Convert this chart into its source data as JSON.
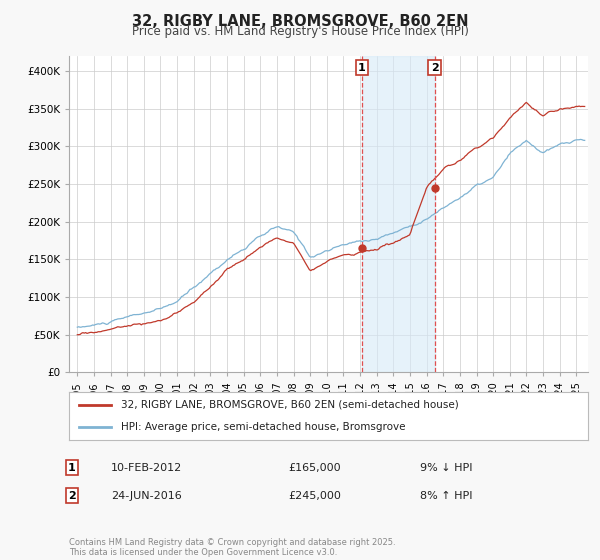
{
  "title": "32, RIGBY LANE, BROMSGROVE, B60 2EN",
  "subtitle": "Price paid vs. HM Land Registry's House Price Index (HPI)",
  "background_color": "#f8f8f8",
  "plot_bg_color": "#ffffff",
  "grid_color": "#cccccc",
  "ylim": [
    0,
    420000
  ],
  "yticks": [
    0,
    50000,
    100000,
    150000,
    200000,
    250000,
    300000,
    350000,
    400000
  ],
  "ytick_labels": [
    "£0",
    "£50K",
    "£100K",
    "£150K",
    "£200K",
    "£250K",
    "£300K",
    "£350K",
    "£400K"
  ],
  "xlim_start": 1994.5,
  "xlim_end": 2025.7,
  "xticks": [
    1995,
    1996,
    1997,
    1998,
    1999,
    2000,
    2001,
    2002,
    2003,
    2004,
    2005,
    2006,
    2007,
    2008,
    2009,
    2010,
    2011,
    2012,
    2013,
    2014,
    2015,
    2016,
    2017,
    2018,
    2019,
    2020,
    2021,
    2022,
    2023,
    2024,
    2025
  ],
  "sale1_x": 2012.11,
  "sale1_y": 165000,
  "sale1_date": "10-FEB-2012",
  "sale1_price": "£165,000",
  "sale1_hpi": "9% ↓ HPI",
  "sale2_x": 2016.48,
  "sale2_y": 245000,
  "sale2_date": "24-JUN-2016",
  "sale2_price": "£245,000",
  "sale2_hpi": "8% ↑ HPI",
  "sale_dot_color": "#c0392b",
  "sale_line_color": "#c0392b",
  "hpi_line_color": "#7fb3d3",
  "vline_color": "#e05050",
  "shade_color": "#d6eaf8",
  "legend_label_sale": "32, RIGBY LANE, BROMSGROVE, B60 2EN (semi-detached house)",
  "legend_label_hpi": "HPI: Average price, semi-detached house, Bromsgrove",
  "footer": "Contains HM Land Registry data © Crown copyright and database right 2025.\nThis data is licensed under the Open Government Licence v3.0.",
  "hpi_years_key": [
    1995,
    1996,
    1997,
    1998,
    1999,
    2000,
    2001,
    2002,
    2003,
    2004,
    2005,
    2006,
    2007,
    2008,
    2009,
    2010,
    2011,
    2012,
    2013,
    2014,
    2015,
    2016,
    2017,
    2018,
    2019,
    2020,
    2021,
    2022,
    2023,
    2024,
    2025
  ],
  "hpi_vals_key": [
    60000,
    63000,
    67000,
    72000,
    78000,
    82000,
    92000,
    110000,
    130000,
    150000,
    165000,
    180000,
    192000,
    183000,
    152000,
    161000,
    168000,
    173000,
    178000,
    186000,
    196000,
    208000,
    222000,
    237000,
    252000,
    262000,
    292000,
    308000,
    293000,
    302000,
    308000
  ],
  "sale_vals_key": [
    50000,
    53000,
    57000,
    62000,
    67000,
    70000,
    78000,
    95000,
    115000,
    138000,
    152000,
    168000,
    178000,
    173000,
    143000,
    153000,
    161000,
    165000,
    170000,
    178000,
    188000,
    245000,
    267000,
    278000,
    293000,
    308000,
    338000,
    358000,
    338000,
    348000,
    353000
  ]
}
